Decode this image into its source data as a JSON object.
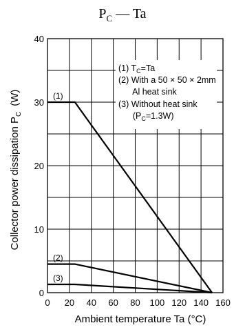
{
  "chart_data": {
    "type": "line",
    "title": {
      "main": "P",
      "sub": "C",
      "rest": " — Ta"
    },
    "xlabel": "Ambient temperature   Ta   (°C)",
    "ylabel": {
      "main": "Collector power dissipation   P",
      "sub": "C",
      "unit": "(W)"
    },
    "xlim": [
      0,
      160
    ],
    "ylim": [
      0,
      40
    ],
    "xticks": [
      "0",
      "20",
      "40",
      "60",
      "80",
      "100",
      "120",
      "140",
      "160"
    ],
    "yticks": [
      "0",
      "10",
      "20",
      "30",
      "40"
    ],
    "grid": true,
    "series": [
      {
        "name": "(1)",
        "x": [
          0,
          25,
          150
        ],
        "y": [
          30,
          30,
          0
        ]
      },
      {
        "name": "(2)",
        "x": [
          0,
          25,
          150
        ],
        "y": [
          4.5,
          4.5,
          0
        ]
      },
      {
        "name": "(3)",
        "x": [
          0,
          25,
          150
        ],
        "y": [
          1.3,
          1.3,
          0
        ]
      }
    ],
    "legend": [
      {
        "prefix": "(1) T",
        "sub": "C",
        "suffix": "=Ta"
      },
      {
        "prefix": "(2) With a 50 × 50 × 2mm",
        "sub": "",
        "suffix": ""
      },
      {
        "prefix": "      Al heat sink",
        "sub": "",
        "suffix": ""
      },
      {
        "prefix": "(3) Without heat sink",
        "sub": "",
        "suffix": ""
      },
      {
        "prefix": "      (P",
        "sub": "C",
        "suffix": "=1.3W)"
      }
    ]
  }
}
